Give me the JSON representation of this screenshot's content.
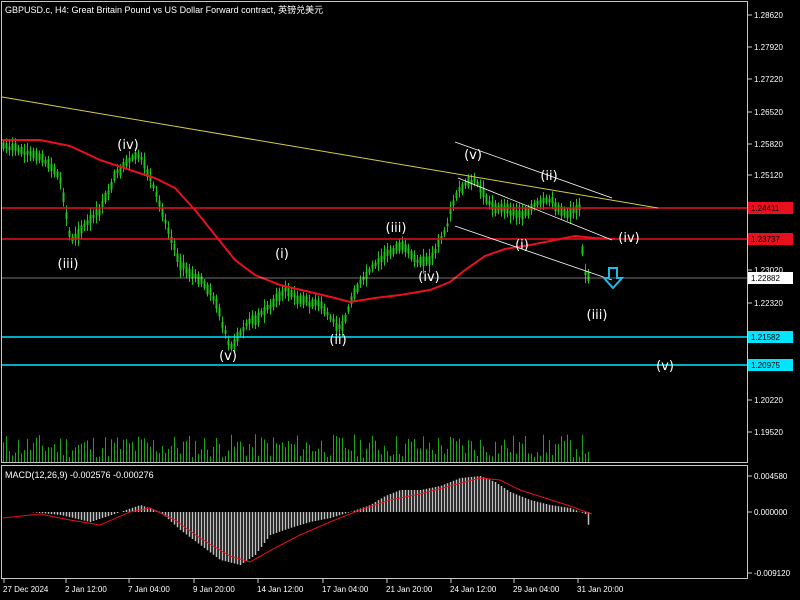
{
  "header": {
    "title": "GBPUSD.c, H4:  Great Britain Pound vs US Dollar Forward contract, 英镑兑美元"
  },
  "macd": {
    "label": "MACD(12,26,9) -0.002576 -0.000276",
    "scale": [
      "0.004580",
      "0.000000",
      "-0.009120"
    ]
  },
  "price_scale": [
    "1.28620",
    "1.27920",
    "1.27220",
    "1.26520",
    "1.25820",
    "1.25120",
    "1.24420",
    "1.23720",
    "1.23020",
    "1.22320",
    "1.21620",
    "1.20920",
    "1.20220",
    "1.19520"
  ],
  "price_levels": [
    {
      "value": "1.24411",
      "color": "#e8101e"
    },
    {
      "value": "1.23737",
      "color": "#e8101e"
    },
    {
      "value": "1.22882",
      "color": "#ffffff"
    },
    {
      "value": "1.21582",
      "color": "#00e5ff"
    },
    {
      "value": "1.20975",
      "color": "#00e5ff"
    }
  ],
  "time_axis": [
    "27 Dec 2024",
    "2 Jan 12:00",
    "7 Jan 04:00",
    "9 Jan 20:00",
    "14 Jan 12:00",
    "17 Jan 04:00",
    "21 Jan 20:00",
    "24 Jan 12:00",
    "29 Jan 04:00",
    "31 Jan 20:00"
  ],
  "wave_labels": [
    "(iii)",
    "(iv)",
    "(v)",
    "(i)",
    "(ii)",
    "(iii)",
    "(iv)",
    "(v)",
    "(ii)",
    "(i)",
    "(iv)",
    "(iii)",
    "(v)"
  ],
  "colors": {
    "background": "#000000",
    "candles": "#22c41a",
    "moving_average": "#e8101e",
    "trendline": "#d4cc4a",
    "channel": "#ffffff",
    "support": "#00e5ff",
    "macd_hist": "#c0c0c0",
    "macd_signal": "#e8101e",
    "arrow": "#22b8e8"
  },
  "icons": [
    "down-arrow-icon"
  ]
}
